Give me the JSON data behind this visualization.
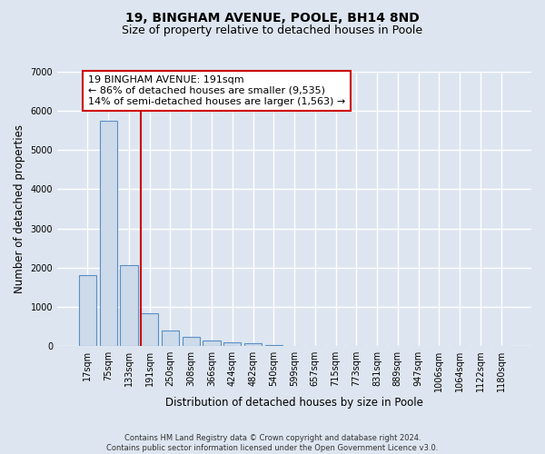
{
  "title1": "19, BINGHAM AVENUE, POOLE, BH14 8ND",
  "title2": "Size of property relative to detached houses in Poole",
  "xlabel": "Distribution of detached houses by size in Poole",
  "ylabel": "Number of detached properties",
  "bar_labels": [
    "17sqm",
    "75sqm",
    "133sqm",
    "191sqm",
    "250sqm",
    "308sqm",
    "366sqm",
    "424sqm",
    "482sqm",
    "540sqm",
    "599sqm",
    "657sqm",
    "715sqm",
    "773sqm",
    "831sqm",
    "889sqm",
    "947sqm",
    "1006sqm",
    "1064sqm",
    "1122sqm",
    "1180sqm"
  ],
  "bar_values": [
    1800,
    5750,
    2060,
    830,
    390,
    245,
    130,
    90,
    75,
    30,
    10,
    5,
    2,
    1,
    0,
    0,
    0,
    0,
    0,
    0,
    0
  ],
  "bar_color": "#ccdaea",
  "bar_edge_color": "#5b8fc5",
  "highlight_line_index": 3,
  "highlight_line_color": "#cc0000",
  "annotation_line1": "19 BINGHAM AVENUE: 191sqm",
  "annotation_line2": "← 86% of detached houses are smaller (9,535)",
  "annotation_line3": "14% of semi-detached houses are larger (1,563) →",
  "annotation_box_edgecolor": "#cc0000",
  "ylim": [
    0,
    7000
  ],
  "yticks": [
    0,
    1000,
    2000,
    3000,
    4000,
    5000,
    6000,
    7000
  ],
  "footer_line1": "Contains HM Land Registry data © Crown copyright and database right 2024.",
  "footer_line2": "Contains public sector information licensed under the Open Government Licence v3.0.",
  "bg_color": "#dde6f0",
  "plot_bg_color": "#dde6f0",
  "grid_color": "#ffffff",
  "title1_fontsize": 10,
  "title2_fontsize": 9,
  "ylabel_fontsize": 8.5,
  "xlabel_fontsize": 8.5,
  "tick_fontsize": 7,
  "footer_fontsize": 6,
  "annotation_fontsize": 8
}
